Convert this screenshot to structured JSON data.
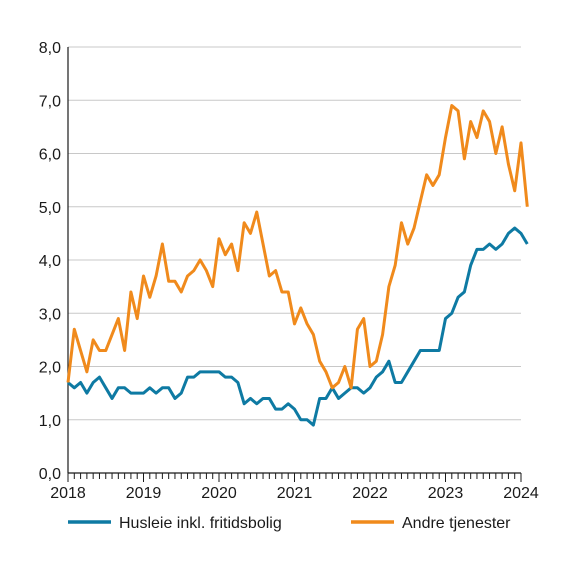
{
  "chart_data": {
    "type": "line",
    "title": "",
    "xlabel": "",
    "ylabel": "",
    "xlim": [
      2018.0,
      2024.0
    ],
    "ylim": [
      0,
      8
    ],
    "x_ticks": [
      "2018",
      "2019",
      "2020",
      "2021",
      "2022",
      "2023",
      "2024"
    ],
    "y_ticks": [
      "0,0",
      "1,0",
      "2,0",
      "3,0",
      "4,0",
      "5,0",
      "6,0",
      "7,0",
      "8,0"
    ],
    "grid": "horizontal",
    "legend_position": "bottom",
    "x_start": "2018-01",
    "x_step": "month",
    "series": [
      {
        "name": "Husleie inkl. fritidsbolig",
        "color": "#0e7aa3",
        "values": [
          1.7,
          1.6,
          1.7,
          1.5,
          1.7,
          1.8,
          1.6,
          1.4,
          1.6,
          1.6,
          1.5,
          1.5,
          1.5,
          1.6,
          1.5,
          1.6,
          1.6,
          1.4,
          1.5,
          1.8,
          1.8,
          1.9,
          1.9,
          1.9,
          1.9,
          1.8,
          1.8,
          1.7,
          1.3,
          1.4,
          1.3,
          1.4,
          1.4,
          1.2,
          1.2,
          1.3,
          1.2,
          1.0,
          1.0,
          0.9,
          1.4,
          1.4,
          1.6,
          1.4,
          1.5,
          1.6,
          1.6,
          1.5,
          1.6,
          1.8,
          1.9,
          2.1,
          1.7,
          1.7,
          1.9,
          2.1,
          2.3,
          2.3,
          2.3,
          2.3,
          2.9,
          3.0,
          3.3,
          3.4,
          3.9,
          4.2,
          4.2,
          4.3,
          4.2,
          4.3,
          4.5,
          4.6,
          4.5,
          4.3
        ]
      },
      {
        "name": "Andre tjenester",
        "color": "#f08a1c",
        "values": [
          1.7,
          2.7,
          2.3,
          1.9,
          2.5,
          2.3,
          2.3,
          2.6,
          2.9,
          2.3,
          3.4,
          2.9,
          3.7,
          3.3,
          3.7,
          4.3,
          3.6,
          3.6,
          3.4,
          3.7,
          3.8,
          4.0,
          3.8,
          3.5,
          4.4,
          4.1,
          4.3,
          3.8,
          4.7,
          4.5,
          4.9,
          4.3,
          3.7,
          3.8,
          3.4,
          3.4,
          2.8,
          3.1,
          2.8,
          2.6,
          2.1,
          1.9,
          1.6,
          1.7,
          2.0,
          1.6,
          2.7,
          2.9,
          2.0,
          2.1,
          2.6,
          3.5,
          3.9,
          4.7,
          4.3,
          4.6,
          5.1,
          5.6,
          5.4,
          5.6,
          6.3,
          6.9,
          6.8,
          5.9,
          6.6,
          6.3,
          6.8,
          6.6,
          6.0,
          6.5,
          5.8,
          5.3,
          6.2,
          5.0
        ]
      }
    ]
  }
}
